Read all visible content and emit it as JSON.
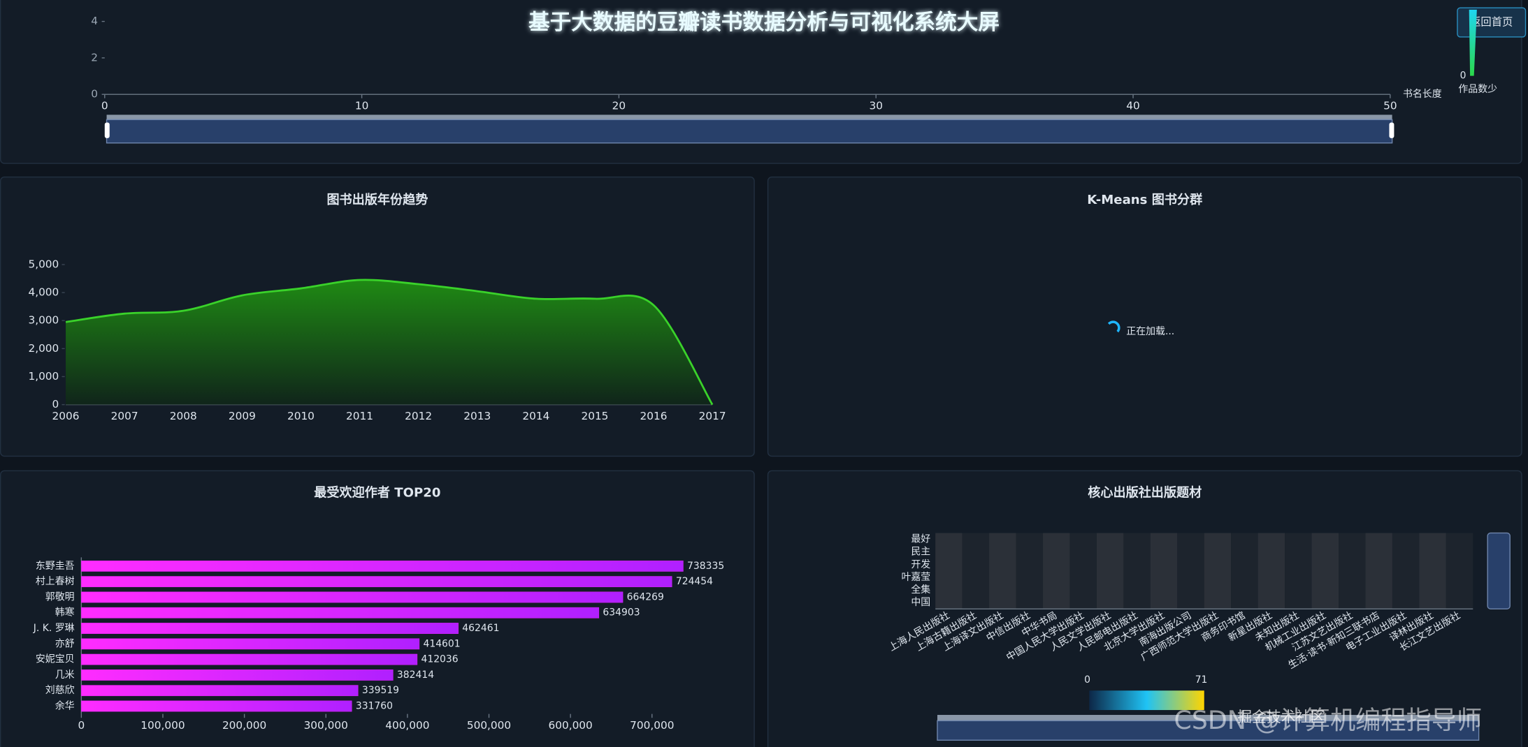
{
  "header": {
    "title": "基于大数据的豆瓣读书数据分析与可视化系统大屏",
    "button": "返回首页"
  },
  "chart_data": [
    {
      "type": "bar",
      "x_label": "书名长度",
      "xlim": [
        0,
        50
      ],
      "xticks": [
        0,
        10,
        20,
        30,
        40,
        50
      ],
      "ylim": [
        0,
        4
      ],
      "yticks": [
        0,
        2,
        4
      ],
      "visual_map": {
        "min": 0,
        "label": "作品数少"
      }
    },
    {
      "type": "area",
      "title": "图书出版年份趋势",
      "categories": [
        "2006",
        "2007",
        "2008",
        "2009",
        "2010",
        "2011",
        "2012",
        "2013",
        "2014",
        "2015",
        "2016",
        "2017"
      ],
      "values": [
        2950,
        3250,
        3350,
        3900,
        4150,
        4450,
        4300,
        4050,
        3780,
        3780,
        3550,
        0
      ],
      "color": "#3ad22a",
      "ylim": [
        0,
        5000
      ],
      "yticks": [
        0,
        {
          "value": 1000,
          "label": "1,000"
        },
        {
          "value": 2000,
          "label": "2,000"
        },
        {
          "value": 3000,
          "label": "3,000"
        },
        {
          "value": 4000,
          "label": "4,000"
        },
        {
          "value": 5000,
          "label": "5,000"
        }
      ]
    },
    {
      "type": "scatter",
      "title": "K-Means 图书分群",
      "loading": "正在加载..."
    },
    {
      "type": "hbar",
      "title": "最受欢迎作者 TOP20",
      "categories": [
        "东野圭吾",
        "村上春树",
        "郭敬明",
        "韩寒",
        "J. K. 罗琳",
        "亦舒",
        "安妮宝贝",
        "几米",
        "刘慈欣",
        "余华"
      ],
      "values": [
        738335,
        724454,
        664269,
        634903,
        462461,
        414601,
        412036,
        382414,
        339519,
        331760
      ],
      "color": "#ee22ff",
      "xlim": [
        0,
        750000
      ],
      "xticks": [
        0,
        {
          "value": 100000,
          "label": "100,000"
        },
        {
          "value": 200000,
          "label": "200,000"
        },
        {
          "value": 300000,
          "label": "300,000"
        },
        {
          "value": 400000,
          "label": "400,000"
        },
        {
          "value": 500000,
          "label": "500,000"
        },
        {
          "value": 600000,
          "label": "600,000"
        },
        {
          "value": 700000,
          "label": "700,000"
        }
      ]
    },
    {
      "type": "heatmap",
      "title": "核心出版社出版题材",
      "categories": [
        "上海人民出版社",
        "上海古籍出版社",
        "上海译文出版社",
        "中信出版社",
        "中华书局",
        "中国人民大学出版社",
        "人民文学出版社",
        "人民邮电出版社",
        "北京大学出版社",
        "南海出版公司",
        "广西师范大学出版社",
        "商务印书馆",
        "新星出版社",
        "未知出版社",
        "机械工业出版社",
        "江苏文艺出版社",
        "生活·读书·新知三联书店",
        "电子工业出版社",
        "译林出版社",
        "长江文艺出版社"
      ],
      "y_categories": [
        "中国",
        "全集",
        "叶嘉莹",
        "开发",
        "民主",
        "最好"
      ],
      "visual_map": {
        "min": 0,
        "max": 71
      }
    }
  ],
  "watermark": [
    "掘金技术社区",
    "CSDN @计算机编程指导师"
  ]
}
